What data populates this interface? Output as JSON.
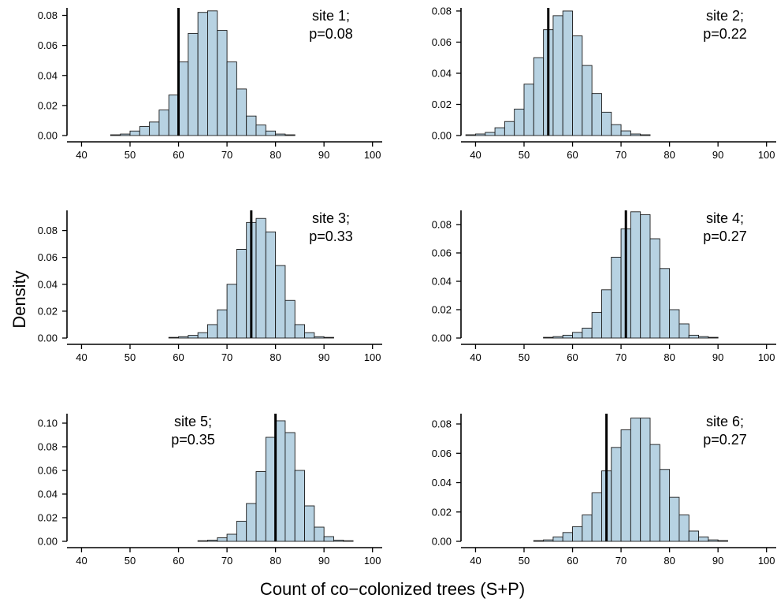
{
  "figure": {
    "xlabel": "Count of co−colonized trees (S+P)",
    "ylabel": "Density"
  },
  "chart_data": [
    {
      "type": "bar",
      "label_lines": [
        "site 1;",
        "p=0.08"
      ],
      "xlim": [
        37,
        102
      ],
      "xticks": [
        40,
        50,
        60,
        70,
        80,
        90,
        100
      ],
      "ylim": [
        0,
        0.085
      ],
      "yticks": [
        0.0,
        0.02,
        0.04,
        0.06,
        0.08
      ],
      "bin_width": 2,
      "bin_start": 46,
      "values": [
        0.0005,
        0.001,
        0.003,
        0.006,
        0.009,
        0.017,
        0.027,
        0.049,
        0.068,
        0.082,
        0.083,
        0.07,
        0.049,
        0.031,
        0.013,
        0.007,
        0.003,
        0.001,
        0.0005
      ],
      "observed": 60,
      "label_position": "top-right"
    },
    {
      "type": "bar",
      "label_lines": [
        "site 2;",
        "p=0.22"
      ],
      "xlim": [
        37,
        102
      ],
      "xticks": [
        40,
        50,
        60,
        70,
        80,
        90,
        100
      ],
      "ylim": [
        0,
        0.082
      ],
      "yticks": [
        0.0,
        0.02,
        0.04,
        0.06,
        0.08
      ],
      "bin_width": 2,
      "bin_start": 38,
      "values": [
        0.0005,
        0.001,
        0.002,
        0.005,
        0.009,
        0.017,
        0.033,
        0.05,
        0.068,
        0.077,
        0.08,
        0.064,
        0.045,
        0.027,
        0.015,
        0.007,
        0.003,
        0.001,
        0.0005
      ],
      "observed": 55,
      "label_position": "top-right"
    },
    {
      "type": "bar",
      "label_lines": [
        "site 3;",
        "p=0.33"
      ],
      "xlim": [
        37,
        102
      ],
      "xticks": [
        40,
        50,
        60,
        70,
        80,
        90,
        100
      ],
      "ylim": [
        0,
        0.095
      ],
      "yticks": [
        0.0,
        0.02,
        0.04,
        0.06,
        0.08
      ],
      "bin_width": 2,
      "bin_start": 58,
      "values": [
        0.0005,
        0.001,
        0.002,
        0.004,
        0.01,
        0.021,
        0.04,
        0.066,
        0.086,
        0.089,
        0.079,
        0.054,
        0.028,
        0.01,
        0.004,
        0.001,
        0.0005
      ],
      "observed": 75,
      "label_position": "top-right"
    },
    {
      "type": "bar",
      "label_lines": [
        "site 4;",
        "p=0.27"
      ],
      "xlim": [
        37,
        102
      ],
      "xticks": [
        40,
        50,
        60,
        70,
        80,
        90,
        100
      ],
      "ylim": [
        0,
        0.09
      ],
      "yticks": [
        0.0,
        0.02,
        0.04,
        0.06,
        0.08
      ],
      "bin_width": 2,
      "bin_start": 54,
      "values": [
        0.0005,
        0.001,
        0.002,
        0.004,
        0.007,
        0.018,
        0.034,
        0.057,
        0.077,
        0.089,
        0.087,
        0.07,
        0.049,
        0.02,
        0.01,
        0.002,
        0.001,
        0.0005
      ],
      "observed": 71,
      "label_position": "top-right"
    },
    {
      "type": "bar",
      "label_lines": [
        "site 5;",
        "p=0.35"
      ],
      "xlim": [
        37,
        102
      ],
      "xticks": [
        40,
        50,
        60,
        70,
        80,
        90,
        100
      ],
      "ylim": [
        0,
        0.108
      ],
      "yticks": [
        0.0,
        0.02,
        0.04,
        0.06,
        0.08,
        0.1
      ],
      "bin_width": 2,
      "bin_start": 64,
      "values": [
        0.0005,
        0.001,
        0.003,
        0.006,
        0.017,
        0.032,
        0.059,
        0.088,
        0.102,
        0.092,
        0.06,
        0.03,
        0.012,
        0.004,
        0.001,
        0.0005
      ],
      "observed": 80,
      "label_position": "top-left"
    },
    {
      "type": "bar",
      "label_lines": [
        "site 6;",
        "p=0.27"
      ],
      "xlim": [
        37,
        102
      ],
      "xticks": [
        40,
        50,
        60,
        70,
        80,
        90,
        100
      ],
      "ylim": [
        0,
        0.087
      ],
      "yticks": [
        0.0,
        0.02,
        0.04,
        0.06,
        0.08
      ],
      "bin_width": 2,
      "bin_start": 52,
      "values": [
        0.0005,
        0.001,
        0.003,
        0.006,
        0.01,
        0.018,
        0.033,
        0.048,
        0.064,
        0.076,
        0.084,
        0.084,
        0.066,
        0.049,
        0.03,
        0.018,
        0.007,
        0.003,
        0.001,
        0.0005
      ],
      "observed": 67,
      "label_position": "top-right"
    }
  ]
}
